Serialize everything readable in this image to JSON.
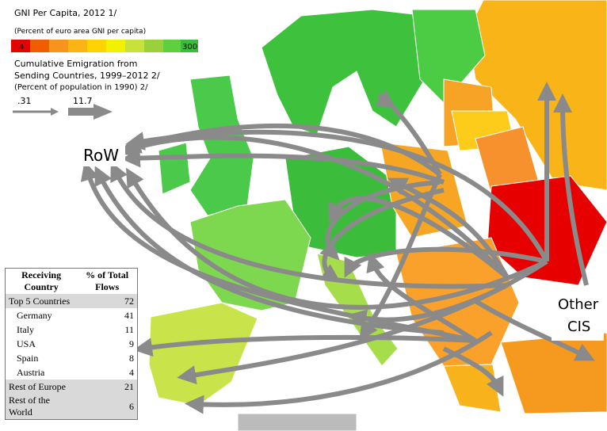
{
  "legend": {
    "gni_title": "GNI Per Capita, 2012 1/",
    "gni_subtitle": "(Percent of euro area GNI per capita)",
    "gni_min": 4,
    "gni_max": 300,
    "emigration_title_1": "Cumulative Emigration from",
    "emigration_title_2": "Sending Countries, 1999–2012 2/",
    "emigration_subtitle": "(Percent of population in 1990) 2/",
    "arrow_small": ".31",
    "arrow_large": "11.7"
  },
  "labels": {
    "row": "RoW",
    "other_cis_1": "Other",
    "other_cis_2": "CIS"
  },
  "table": {
    "header": [
      "Receiving Country",
      "% of Total Flows"
    ],
    "rows": [
      [
        "Top 5 Countries",
        72
      ],
      [
        "Germany",
        41
      ],
      [
        "Italy",
        11
      ],
      [
        "USA",
        9
      ],
      [
        "Spain",
        8
      ],
      [
        "Austria",
        4
      ],
      [
        "Rest of Europe",
        21
      ],
      [
        "Rest of the World",
        6
      ]
    ]
  }
}
